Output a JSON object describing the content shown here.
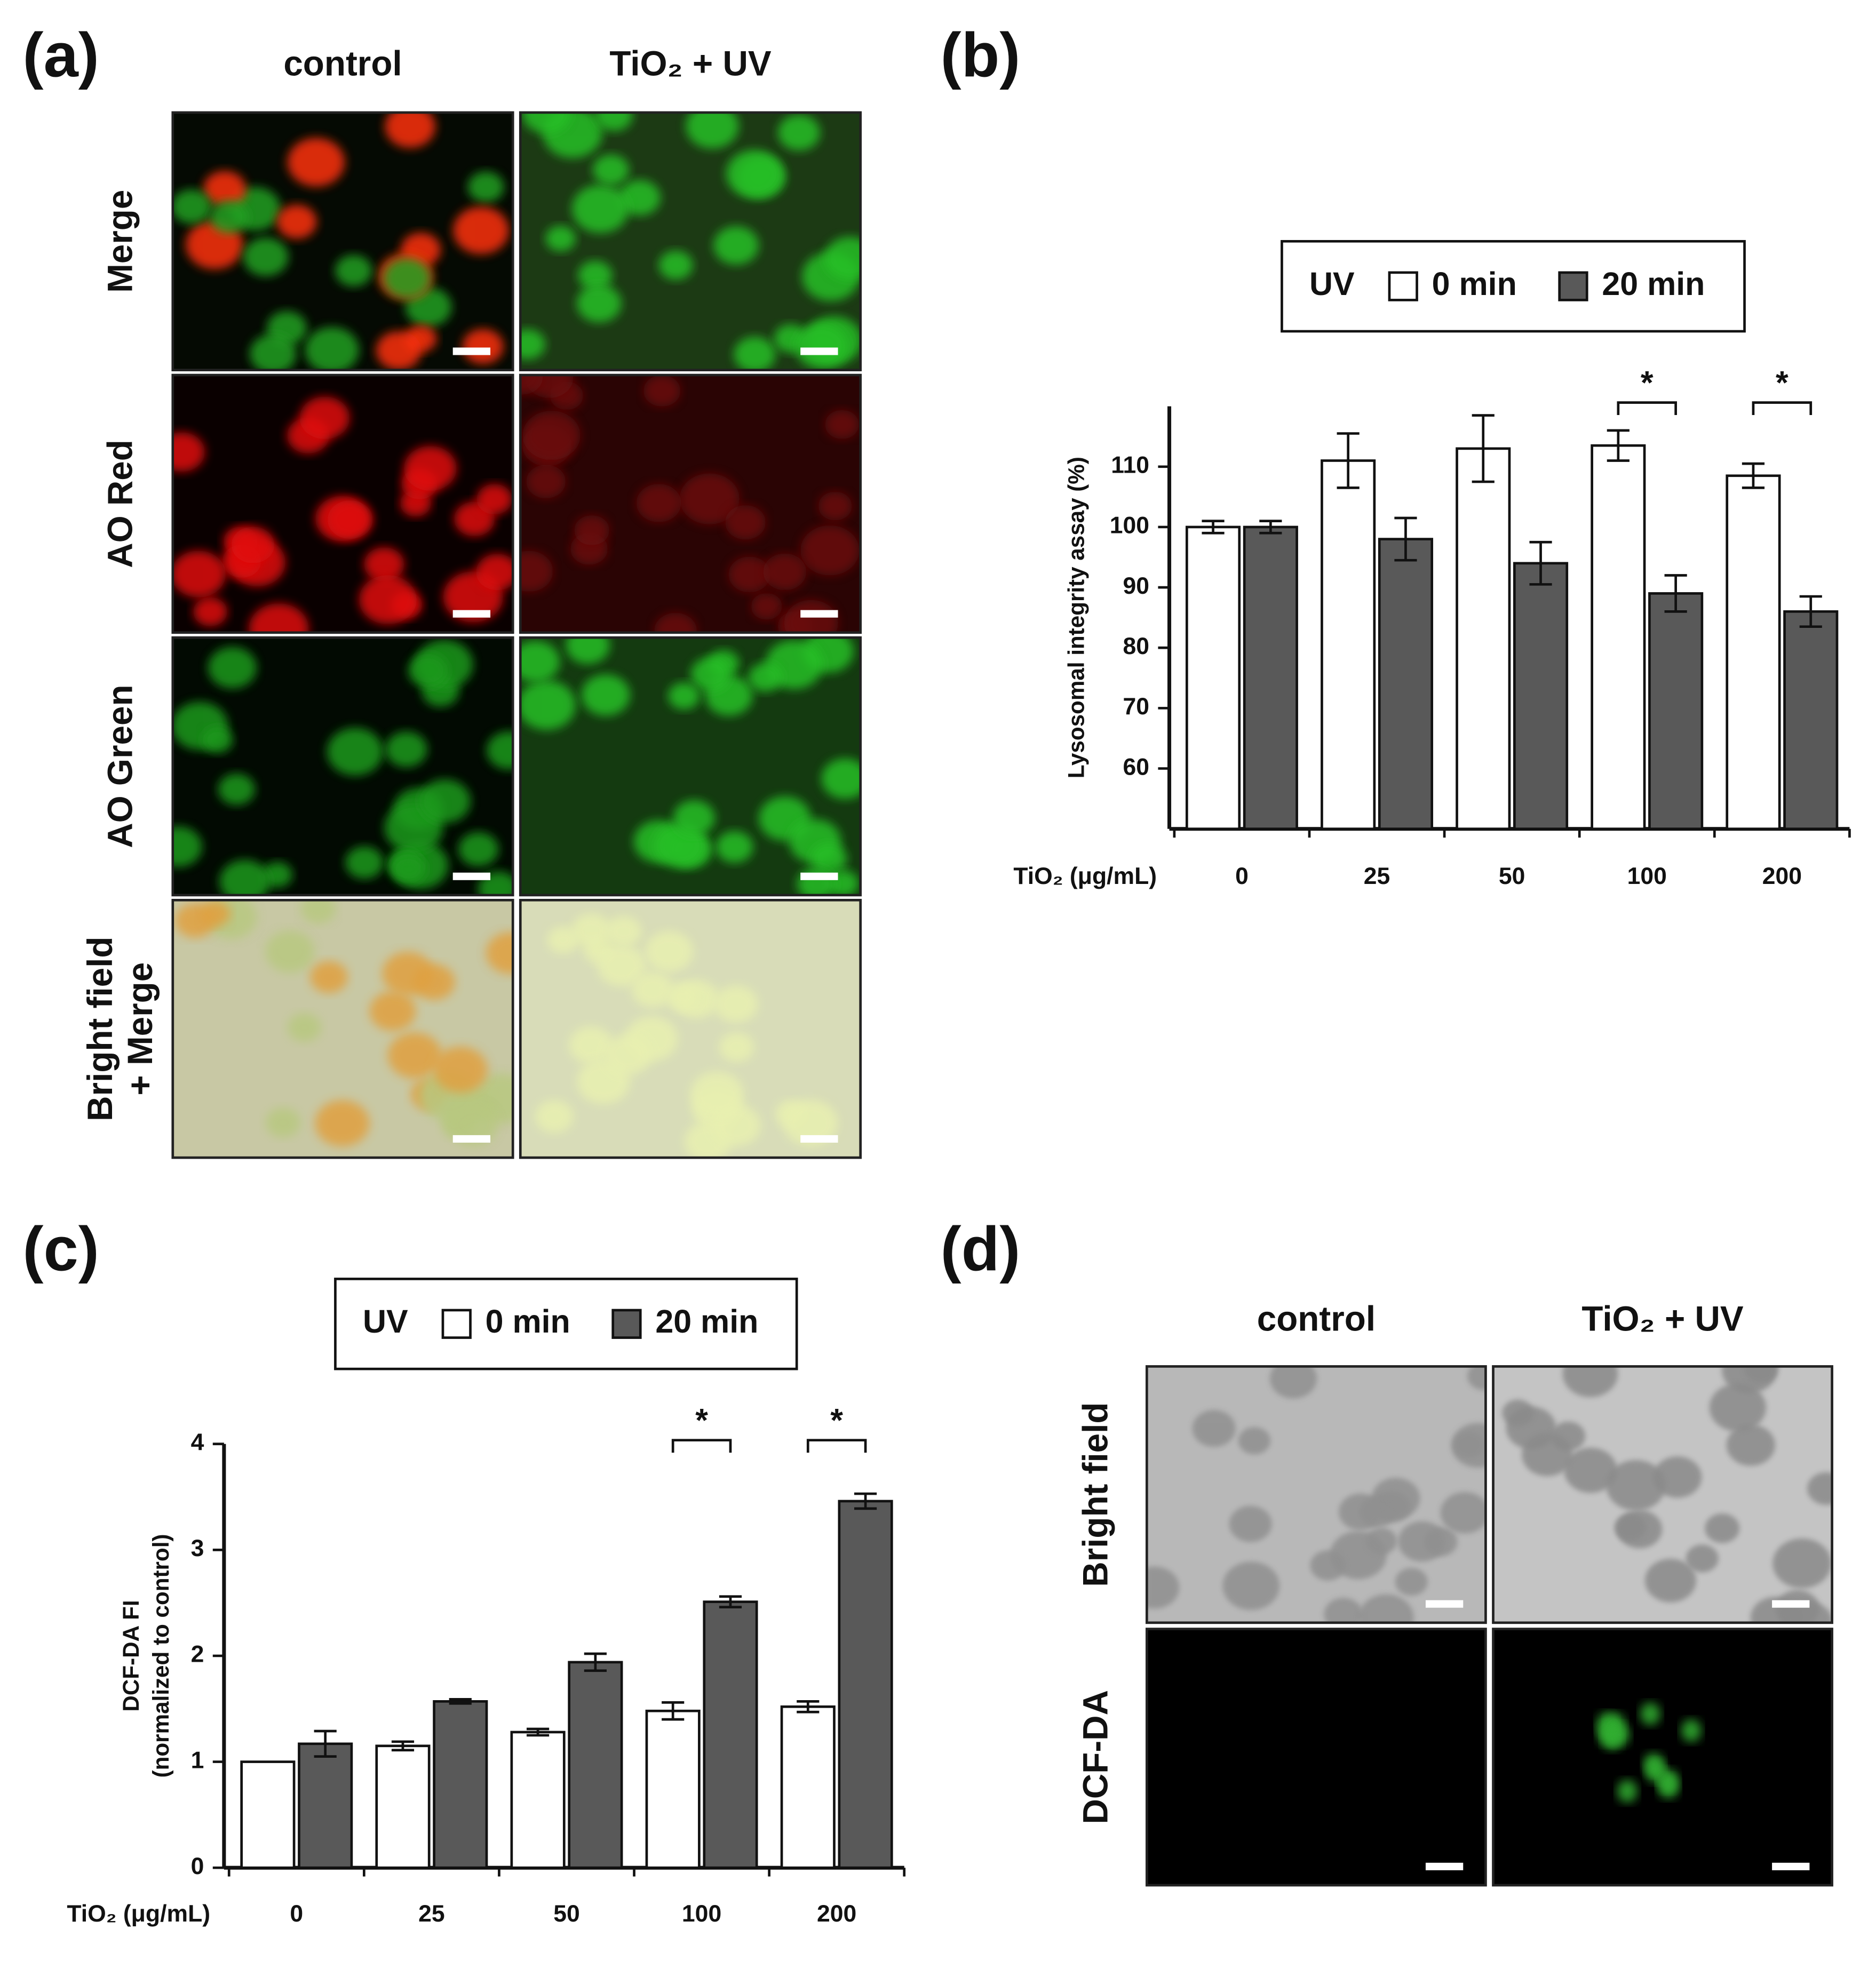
{
  "figure": {
    "panel_a": {
      "label": "(a)",
      "columns": [
        "control",
        "TiO₂ + UV"
      ],
      "rows": [
        [
          "Merge"
        ],
        [
          "AO Red"
        ],
        [
          "AO Green"
        ],
        [
          "Bright field",
          "+ Merge"
        ]
      ]
    },
    "panel_b": {
      "label": "(b)"
    },
    "panel_c": {
      "label": "(c)"
    },
    "panel_d": {
      "label": "(d)",
      "columns": [
        "control",
        "TiO₂ + UV"
      ],
      "rows": [
        [
          "Bright field"
        ],
        [
          "DCF-DA"
        ]
      ]
    }
  },
  "chart_data": [
    {
      "type": "bar",
      "categories": [
        "0",
        "25",
        "50",
        "100",
        "200"
      ],
      "xlabel": "TiO₂ (μg/mL)",
      "ylabel": [
        "Lysosomal integrity assay (%)"
      ],
      "legend_title": "UV",
      "series": [
        {
          "name": "0 min",
          "color": "#ffffff",
          "values": [
            100,
            111,
            113,
            113.5,
            108.5
          ],
          "errors": [
            1,
            4.5,
            5.5,
            2.5,
            2
          ]
        },
        {
          "name": "20 min",
          "color": "#595959",
          "values": [
            100,
            98,
            94,
            89,
            86
          ],
          "errors": [
            1,
            3.5,
            3.5,
            3,
            2.5
          ]
        }
      ],
      "ylim": [
        50,
        120
      ],
      "yticks": [
        60,
        70,
        80,
        90,
        100,
        110
      ],
      "annotations": [
        {
          "text": "*",
          "category": "100"
        },
        {
          "text": "*",
          "category": "200"
        }
      ]
    },
    {
      "type": "bar",
      "categories": [
        "0",
        "25",
        "50",
        "100",
        "200"
      ],
      "xlabel": "TiO₂ (μg/mL)",
      "ylabel": [
        "DCF-DA FI",
        "(normalized to control)"
      ],
      "legend_title": "UV",
      "series": [
        {
          "name": "0 min",
          "color": "#ffffff",
          "values": [
            1.0,
            1.15,
            1.28,
            1.48,
            1.52
          ],
          "errors": [
            0,
            0.04,
            0.03,
            0.08,
            0.05
          ]
        },
        {
          "name": "20 min",
          "color": "#595959",
          "values": [
            1.17,
            1.57,
            1.94,
            2.51,
            3.46
          ],
          "errors": [
            0.12,
            0.02,
            0.08,
            0.05,
            0.07
          ]
        }
      ],
      "ylim": [
        0,
        4
      ],
      "yticks": [
        0,
        1,
        2,
        3,
        4
      ],
      "annotations": [
        {
          "text": "*",
          "category": "100"
        },
        {
          "text": "*",
          "category": "200"
        }
      ]
    }
  ]
}
